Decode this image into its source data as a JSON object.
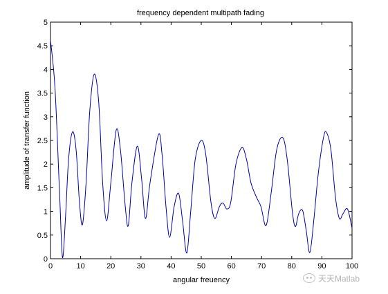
{
  "chart_data": {
    "type": "line",
    "title": "frequency dependent multipath fading",
    "xlabel": "angular freuency",
    "ylabel": "amplitude of transfer function",
    "xlim": [
      0,
      100
    ],
    "ylim": [
      0,
      5
    ],
    "xticks": [
      0,
      10,
      20,
      30,
      40,
      50,
      60,
      70,
      80,
      90,
      100
    ],
    "xtick_labels": [
      "0",
      "10",
      "20",
      "30",
      "40",
      "50",
      "60",
      "70",
      "80",
      "90",
      "100"
    ],
    "yticks": [
      0,
      0.5,
      1,
      1.5,
      2,
      2.5,
      3,
      3.5,
      4,
      4.5,
      5
    ],
    "ytick_labels": [
      "0",
      "0.5",
      "1",
      "1.5",
      "2",
      "2.5",
      "3",
      "3.5",
      "4",
      "4.5",
      "5"
    ],
    "grid": false,
    "line_color": "#0000aa",
    "series": [
      {
        "points": [
          [
            0,
            4.62
          ],
          [
            1.5,
            3.6
          ],
          [
            3,
            1.4
          ],
          [
            4,
            0.02
          ],
          [
            5,
            0.9
          ],
          [
            6,
            2.1
          ],
          [
            7.3,
            2.68
          ],
          [
            8.5,
            2.3
          ],
          [
            9.6,
            1.2
          ],
          [
            10.6,
            0.72
          ],
          [
            11.8,
            1.6
          ],
          [
            13,
            3.1
          ],
          [
            14.5,
            3.9
          ],
          [
            16,
            3.3
          ],
          [
            17.3,
            1.6
          ],
          [
            18.6,
            0.8
          ],
          [
            20,
            1.6
          ],
          [
            21.8,
            2.72
          ],
          [
            23.2,
            2.3
          ],
          [
            24.8,
            1.1
          ],
          [
            25.8,
            0.7
          ],
          [
            27,
            1.6
          ],
          [
            28.8,
            2.38
          ],
          [
            30.2,
            1.7
          ],
          [
            31.5,
            0.85
          ],
          [
            33,
            1.6
          ],
          [
            35.8,
            2.62
          ],
          [
            37,
            2.2
          ],
          [
            38.3,
            1.1
          ],
          [
            39.5,
            0.45
          ],
          [
            41,
            1.1
          ],
          [
            42.5,
            1.38
          ],
          [
            43.8,
            0.8
          ],
          [
            45.2,
            0.12
          ],
          [
            46.5,
            1.0
          ],
          [
            48,
            2.1
          ],
          [
            50,
            2.5
          ],
          [
            51.5,
            2.2
          ],
          [
            53.2,
            1.2
          ],
          [
            54.5,
            0.85
          ],
          [
            56,
            1.1
          ],
          [
            57.2,
            1.18
          ],
          [
            58.5,
            1.05
          ],
          [
            59.8,
            1.2
          ],
          [
            61.5,
            2.0
          ],
          [
            63.5,
            2.35
          ],
          [
            65,
            2.1
          ],
          [
            66.5,
            1.6
          ],
          [
            68.3,
            1.3
          ],
          [
            69.8,
            1.1
          ],
          [
            71.5,
            0.7
          ],
          [
            73.2,
            1.4
          ],
          [
            75,
            2.3
          ],
          [
            77,
            2.56
          ],
          [
            78.5,
            2.1
          ],
          [
            80.2,
            1.0
          ],
          [
            81.2,
            0.68
          ],
          [
            82.3,
            0.95
          ],
          [
            83.6,
            1.02
          ],
          [
            84.8,
            0.6
          ],
          [
            86,
            0.13
          ],
          [
            87.3,
            0.8
          ],
          [
            88.8,
            1.8
          ],
          [
            90.5,
            2.55
          ],
          [
            91.5,
            2.67
          ],
          [
            93,
            2.3
          ],
          [
            94.5,
            1.3
          ],
          [
            95.8,
            0.85
          ],
          [
            97,
            0.95
          ],
          [
            98.5,
            1.05
          ],
          [
            100,
            0.65
          ]
        ]
      }
    ]
  },
  "watermark": {
    "text": "天天Matlab"
  }
}
